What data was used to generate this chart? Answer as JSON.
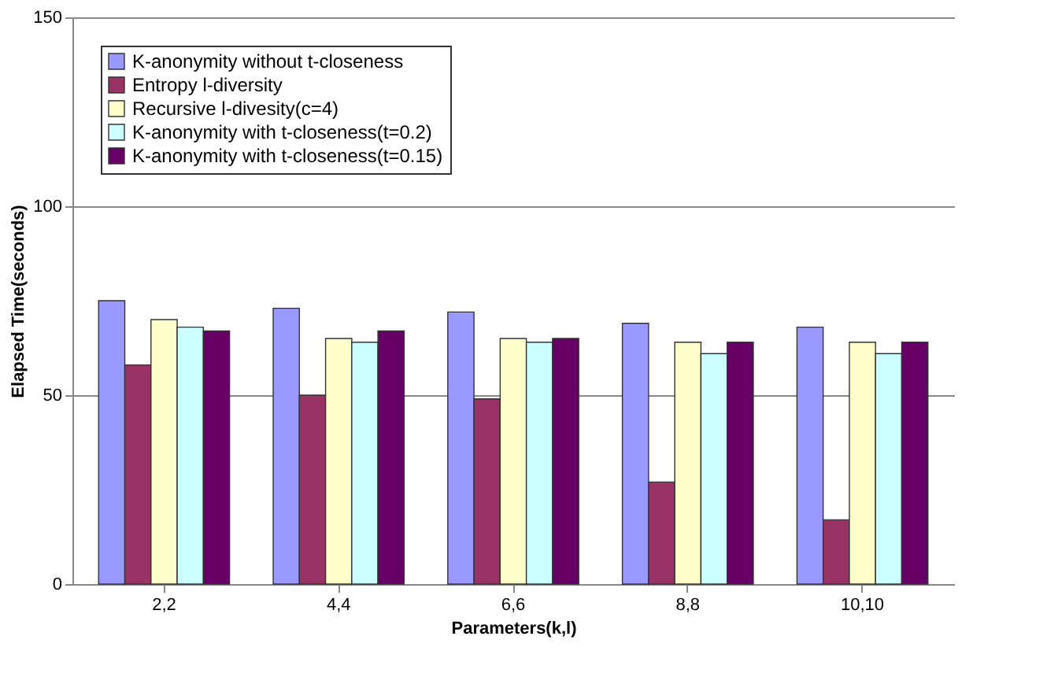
{
  "chart_data": {
    "type": "bar",
    "xlabel": "Parameters(k,l)",
    "ylabel": "Elapsed Time(seconds)",
    "categories": [
      "2,2",
      "4,4",
      "6,6",
      "8,8",
      "10,10"
    ],
    "series": [
      {
        "name": "K-anonymity without t-closeness",
        "color": "#9999ff",
        "values": [
          75,
          73,
          72,
          69,
          68
        ]
      },
      {
        "name": "Entropy l-diversity",
        "color": "#993366",
        "values": [
          58,
          50,
          49,
          27,
          17
        ]
      },
      {
        "name": "Recursive l-divesity(c=4)",
        "color": "#ffffcc",
        "values": [
          70,
          65,
          65,
          64,
          64
        ]
      },
      {
        "name": "K-anonymity with t-closeness(t=0.2)",
        "color": "#ccffff",
        "values": [
          68,
          64,
          64,
          61,
          61
        ]
      },
      {
        "name": "K-anonymity with t-closeness(t=0.15)",
        "color": "#660066",
        "values": [
          67,
          67,
          65,
          64,
          64
        ]
      }
    ],
    "ylim": [
      0,
      150
    ],
    "yticks": [
      0,
      50,
      100,
      150
    ],
    "grid": "y",
    "legend": "top left"
  }
}
